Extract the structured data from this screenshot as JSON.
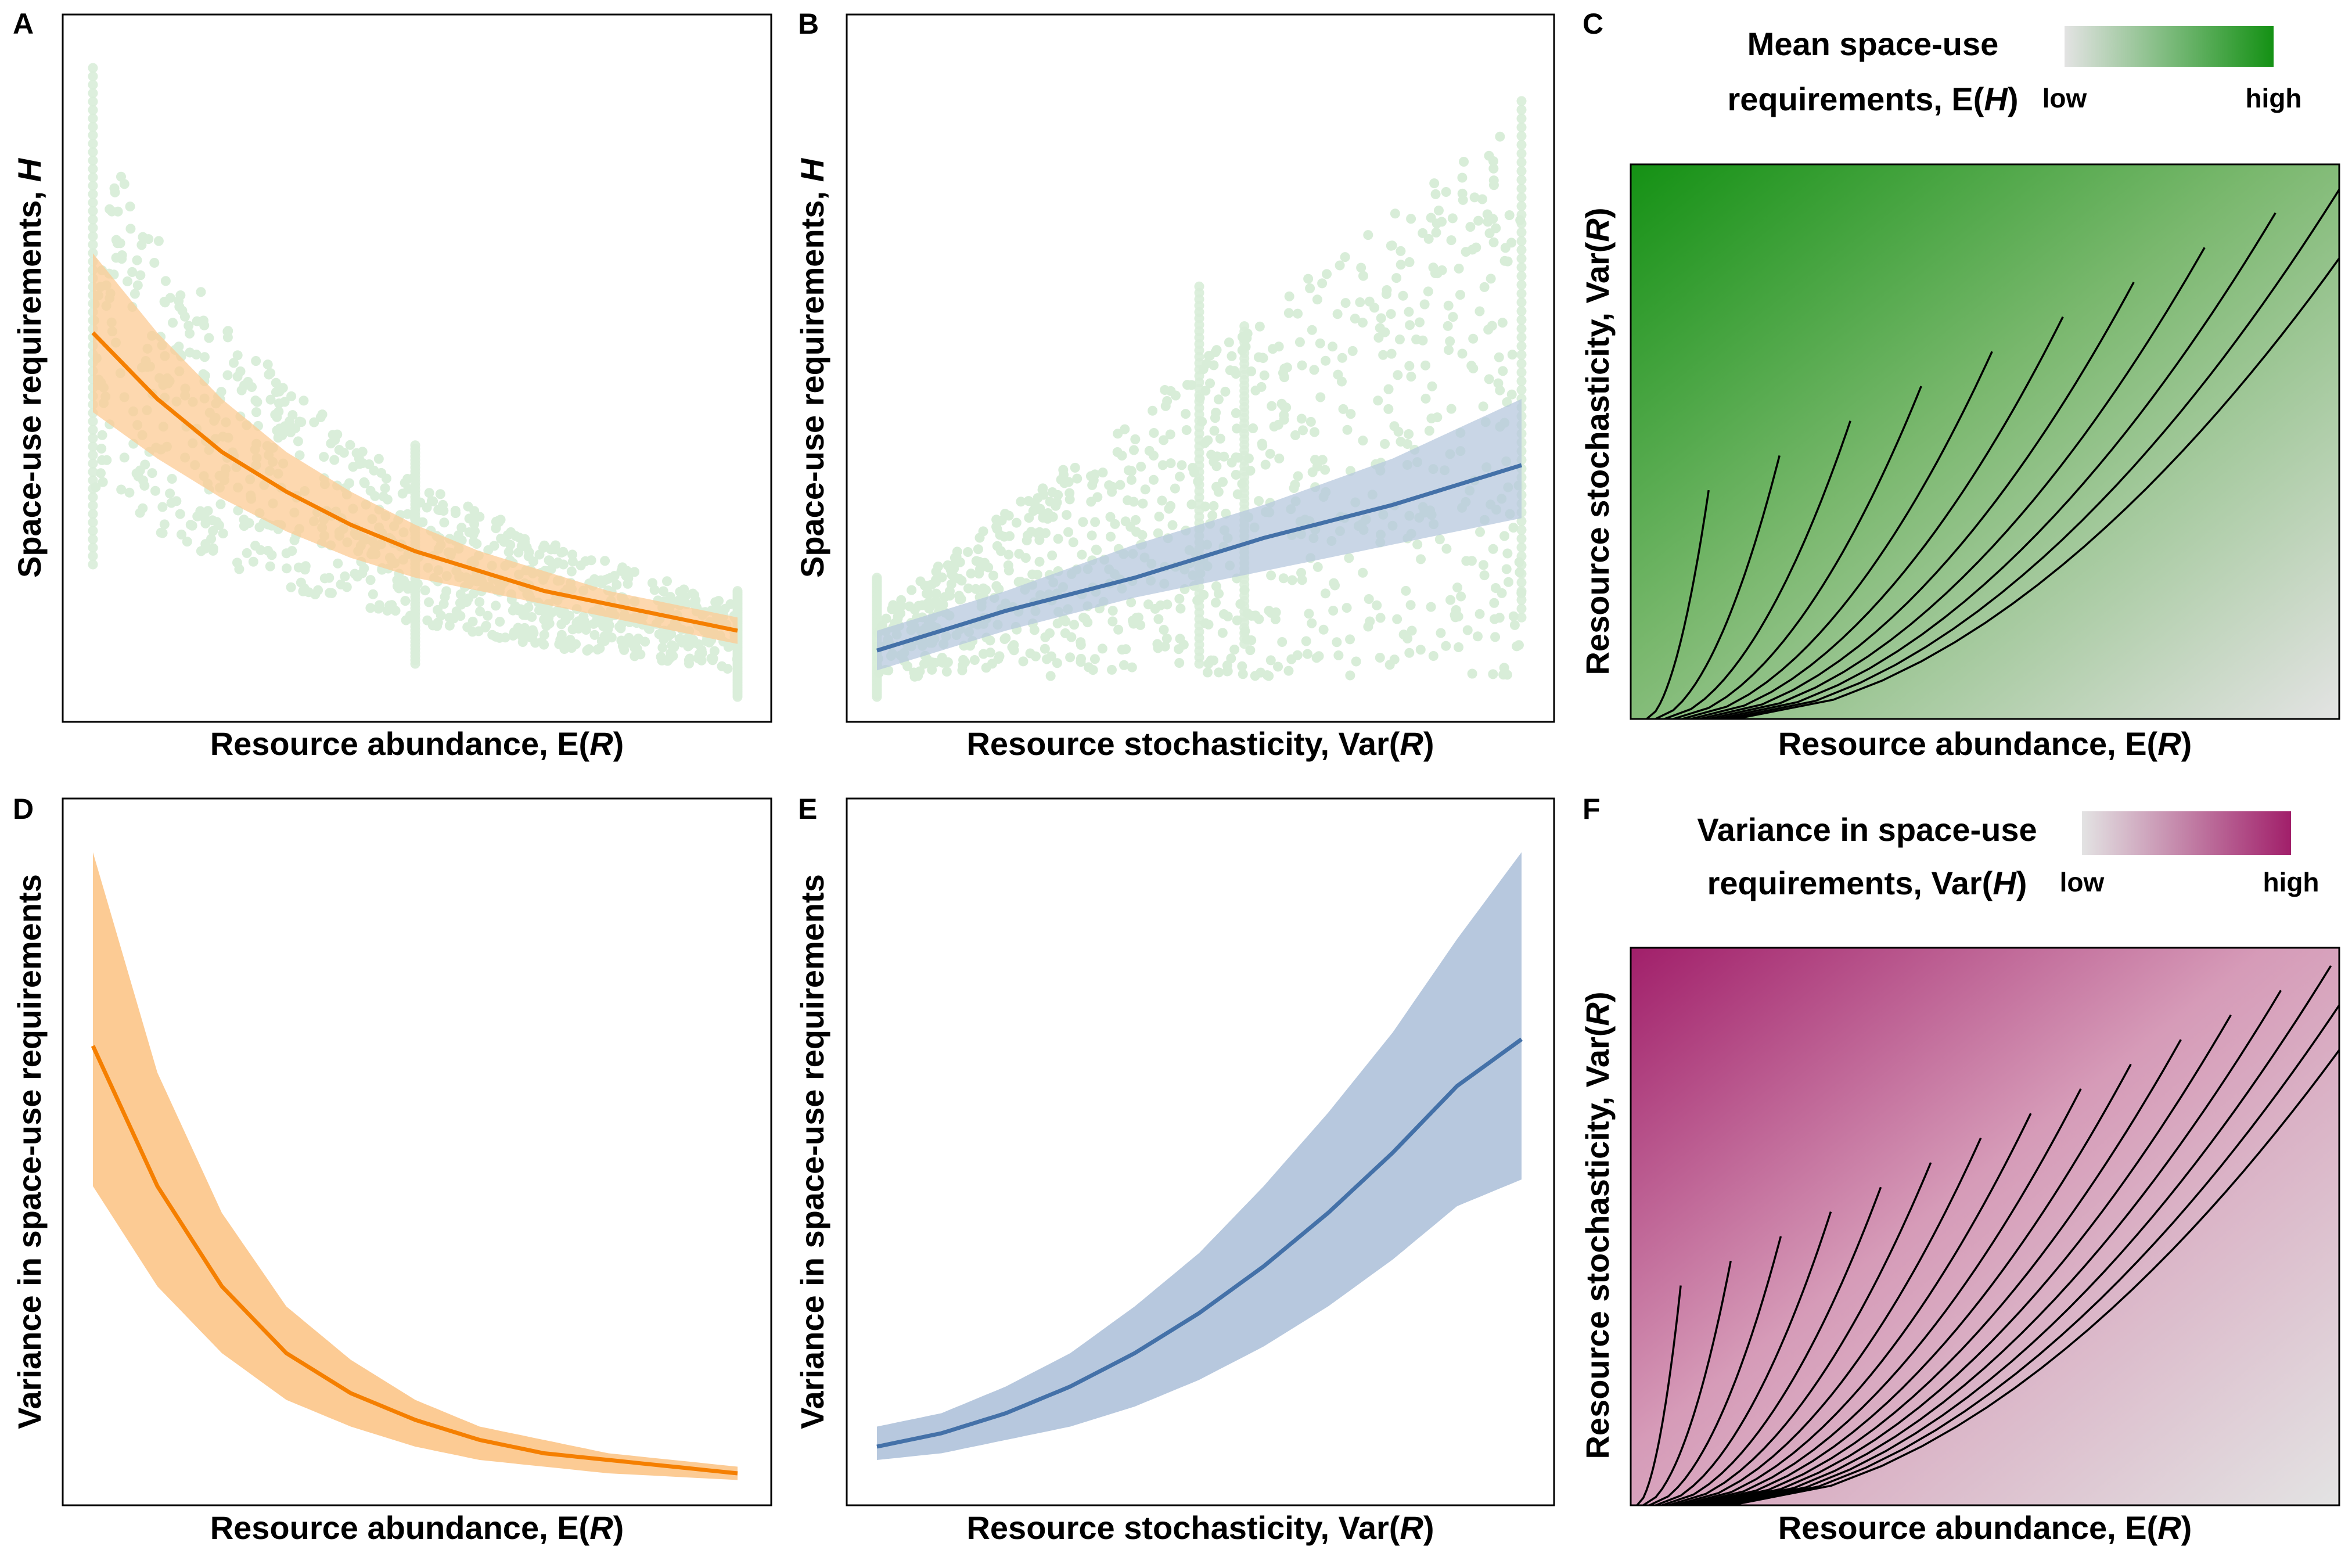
{
  "colors": {
    "green_points": "#2e9e2e",
    "orange_line": "#f57f00",
    "orange_band": "#fccb94",
    "blue_line": "#4471a8",
    "blue_band": "#b7c8de",
    "green_high": "#149114",
    "magenta_high": "#a11f6a",
    "grey_low": "#e3e3e3"
  },
  "panels": {
    "A": {
      "letter": "A",
      "xlabel": "Resource abundance, E(",
      "xlabel_var": "R",
      "xlabel_close": ")",
      "ylabel": "Space-use requirements, ",
      "ylabel_var": "H"
    },
    "B": {
      "letter": "B",
      "xlabel": "Resource stochasticity, Var(",
      "xlabel_var": "R",
      "xlabel_close": ")",
      "ylabel": "Space-use requirements, ",
      "ylabel_var": "H"
    },
    "C": {
      "letter": "C",
      "legend_title_1": "Mean space-use",
      "legend_title_2": "requirements, E(",
      "legend_title_var": "H",
      "legend_title_close": ")",
      "legend_low": "low",
      "legend_high": "high",
      "xlabel": "Resource abundance, E(",
      "xlabel_var": "R",
      "xlabel_close": ")",
      "ylabel": "Resource stochasticity, Var(",
      "ylabel_var": "R",
      "ylabel_close": ")"
    },
    "D": {
      "letter": "D",
      "xlabel": "Resource abundance, E(",
      "xlabel_var": "R",
      "xlabel_close": ")",
      "ylabel": "Variance in space-use requirements"
    },
    "E": {
      "letter": "E",
      "xlabel": "Resource stochasticity, Var(",
      "xlabel_var": "R",
      "xlabel_close": ")",
      "ylabel": "Variance in space-use requirements"
    },
    "F": {
      "letter": "F",
      "legend_title_1": "Variance in space-use",
      "legend_title_2": "requirements, Var(",
      "legend_title_var": "H",
      "legend_title_close": ")",
      "legend_low": "low",
      "legend_high": "high",
      "xlabel": "Resource abundance, E(",
      "xlabel_var": "R",
      "xlabel_close": ")",
      "ylabel": "Resource stochasticity, Var(",
      "ylabel_var": "R",
      "ylabel_close": ")"
    }
  },
  "chart_data": [
    {
      "panel": "A",
      "type": "scatter",
      "x_domain": [
        0,
        1
      ],
      "y_domain": [
        0,
        1
      ],
      "grid": false,
      "fit_line": {
        "color": "#f57f00",
        "x": [
          0,
          0.1,
          0.2,
          0.3,
          0.4,
          0.5,
          0.6,
          0.7,
          0.8,
          0.9,
          1.0
        ],
        "y": [
          0.55,
          0.45,
          0.37,
          0.31,
          0.26,
          0.22,
          0.19,
          0.16,
          0.14,
          0.12,
          0.1
        ]
      },
      "confidence_band": {
        "color": "#fccb94",
        "lower": [
          0.43,
          0.36,
          0.3,
          0.25,
          0.21,
          0.18,
          0.16,
          0.14,
          0.12,
          0.1,
          0.08
        ],
        "upper": [
          0.67,
          0.55,
          0.45,
          0.37,
          0.31,
          0.26,
          0.22,
          0.19,
          0.16,
          0.14,
          0.12
        ]
      },
      "points": {
        "color": "#2e9e2e",
        "description_free": true,
        "vertical_clusters_at_x": [
          0.0,
          0.5,
          1.0
        ],
        "y_range": [
          0.0,
          0.95
        ]
      }
    },
    {
      "panel": "B",
      "type": "scatter",
      "x_domain": [
        0,
        1
      ],
      "y_domain": [
        0,
        1
      ],
      "grid": false,
      "fit_line": {
        "color": "#4471a8",
        "x": [
          0,
          0.2,
          0.4,
          0.6,
          0.8,
          1.0
        ],
        "y": [
          0.07,
          0.13,
          0.18,
          0.24,
          0.29,
          0.35
        ]
      },
      "confidence_band": {
        "color": "#b7c8de",
        "lower": [
          0.04,
          0.1,
          0.15,
          0.19,
          0.23,
          0.27
        ],
        "upper": [
          0.1,
          0.16,
          0.23,
          0.29,
          0.36,
          0.45
        ]
      },
      "points": {
        "color": "#2e9e2e",
        "vertical_clusters_at_x": [
          0.0,
          0.5,
          0.57,
          1.0
        ],
        "y_range": [
          0.0,
          0.95
        ]
      }
    },
    {
      "panel": "C",
      "type": "heatmap",
      "x_domain": [
        0,
        1
      ],
      "y_domain": [
        0,
        1
      ],
      "color_low": "#e3e3e3",
      "color_high": "#149114",
      "contours": true,
      "grid": false
    },
    {
      "panel": "D",
      "type": "line",
      "x_domain": [
        0,
        1
      ],
      "y_domain": [
        0,
        1
      ],
      "grid": false,
      "series": [
        {
          "color": "#f57f00",
          "x": [
            0,
            0.1,
            0.2,
            0.3,
            0.4,
            0.5,
            0.6,
            0.7,
            0.8,
            0.9,
            1.0
          ],
          "y": [
            0.66,
            0.45,
            0.3,
            0.2,
            0.14,
            0.1,
            0.07,
            0.05,
            0.04,
            0.03,
            0.02
          ]
        }
      ],
      "confidence_band": {
        "color": "#fccb94",
        "lower": [
          0.45,
          0.3,
          0.2,
          0.13,
          0.09,
          0.06,
          0.04,
          0.03,
          0.02,
          0.015,
          0.01
        ],
        "upper": [
          0.95,
          0.62,
          0.41,
          0.27,
          0.19,
          0.13,
          0.09,
          0.07,
          0.05,
          0.04,
          0.03
        ]
      }
    },
    {
      "panel": "E",
      "type": "line",
      "x_domain": [
        0,
        1
      ],
      "y_domain": [
        0,
        1
      ],
      "grid": false,
      "series": [
        {
          "color": "#4471a8",
          "x": [
            0,
            0.1,
            0.2,
            0.3,
            0.4,
            0.5,
            0.6,
            0.7,
            0.8,
            0.9,
            1.0
          ],
          "y": [
            0.06,
            0.08,
            0.11,
            0.15,
            0.2,
            0.26,
            0.33,
            0.41,
            0.5,
            0.6,
            0.67
          ]
        }
      ],
      "confidence_band": {
        "color": "#b7c8de",
        "lower": [
          0.04,
          0.05,
          0.07,
          0.09,
          0.12,
          0.16,
          0.21,
          0.27,
          0.34,
          0.42,
          0.46
        ],
        "upper": [
          0.09,
          0.11,
          0.15,
          0.2,
          0.27,
          0.35,
          0.45,
          0.56,
          0.68,
          0.82,
          0.95
        ]
      }
    },
    {
      "panel": "F",
      "type": "heatmap",
      "x_domain": [
        0,
        1
      ],
      "y_domain": [
        0,
        1
      ],
      "color_low": "#e3e3e3",
      "color_high": "#a11f6a",
      "contours": true,
      "grid": false
    }
  ]
}
